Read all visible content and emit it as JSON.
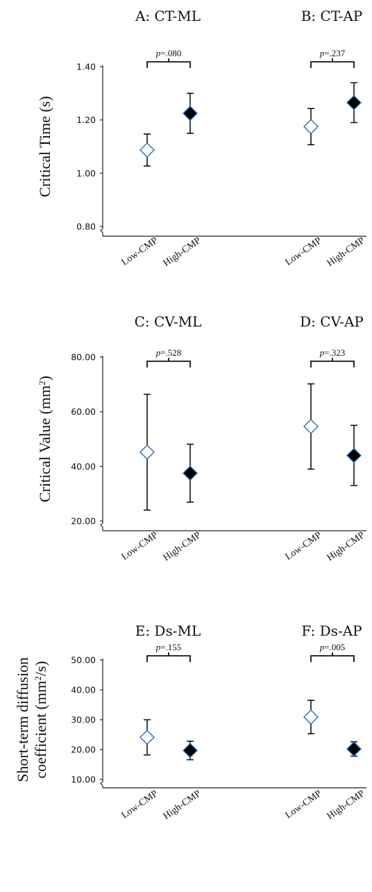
{
  "chart_data": [
    {
      "type": "scatter",
      "ylabel": "Critical Time (s)",
      "ylabel_sup": "",
      "ylabel_tail": "",
      "ylabel_line2": "",
      "ylim": [
        0.8,
        1.4
      ],
      "yticks": [
        "0.80",
        "1.00",
        "1.20",
        "1.40"
      ],
      "axis_break": true,
      "grid": false,
      "panels": [
        {
          "title": "A: CT-ML",
          "p_value": ".080",
          "categories": [
            "Low-CMP",
            "High-CMP"
          ],
          "means": [
            1.087,
            1.225
          ],
          "errors": [
            0.06,
            0.075
          ],
          "marker_colors": [
            "#ffffff",
            "#000000"
          ]
        },
        {
          "title": "B: CT-AP",
          "p_value": ".237",
          "categories": [
            "Low-CMP",
            "High-CMP"
          ],
          "means": [
            1.175,
            1.265
          ],
          "errors": [
            0.068,
            0.075
          ],
          "marker_colors": [
            "#ffffff",
            "#000000"
          ]
        }
      ]
    },
    {
      "type": "scatter",
      "ylabel": "Critical Value  (mm",
      "ylabel_sup": "2",
      "ylabel_tail": ")",
      "ylabel_line2": "",
      "ylim": [
        20,
        80
      ],
      "yticks": [
        "20.00",
        "40.00",
        "60.00",
        "80.00"
      ],
      "axis_break": true,
      "grid": false,
      "panels": [
        {
          "title": "C: CV-ML",
          "p_value": ".528",
          "categories": [
            "Low-CMP",
            "High-CMP"
          ],
          "means": [
            45.2,
            37.5
          ],
          "errors": [
            21.2,
            10.6
          ],
          "marker_colors": [
            "#ffffff",
            "#000000"
          ]
        },
        {
          "title": "D: CV-AP",
          "p_value": ".323",
          "categories": [
            "Low-CMP",
            "High-CMP"
          ],
          "means": [
            54.6,
            44.0
          ],
          "errors": [
            15.6,
            11.0
          ],
          "marker_colors": [
            "#ffffff",
            "#000000"
          ]
        }
      ]
    },
    {
      "type": "scatter",
      "ylabel": "Short-term diffusion",
      "ylabel_sup": "2",
      "ylabel_tail": "/s)",
      "ylabel_line2": "coefficient (mm",
      "ylim": [
        10,
        50
      ],
      "yticks": [
        "10.00",
        "20.00",
        "30.00",
        "40.00",
        "50.00"
      ],
      "axis_break": true,
      "grid": false,
      "panels": [
        {
          "title": "E: Ds-ML",
          "p_value": ".155",
          "categories": [
            "Low-CMP",
            "High-CMP"
          ],
          "means": [
            24.1,
            19.7
          ],
          "errors": [
            5.9,
            3.1
          ],
          "marker_colors": [
            "#ffffff",
            "#000000"
          ]
        },
        {
          "title": "F: Ds-AP",
          "p_value": ".005",
          "categories": [
            "Low-CMP",
            "High-CMP"
          ],
          "means": [
            30.9,
            20.2
          ],
          "errors": [
            5.6,
            2.4
          ],
          "marker_colors": [
            "#ffffff",
            "#000000"
          ]
        }
      ]
    }
  ],
  "p_prefix": "p",
  "p_eq": "=",
  "colors": {
    "marker_outline": "#2b6cb0",
    "axis": "#222222",
    "text": "#111111"
  }
}
